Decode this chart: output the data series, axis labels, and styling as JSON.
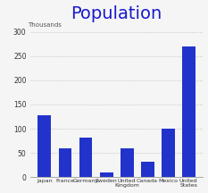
{
  "title": "Population",
  "title_color": "#1a1acc",
  "ylabel": "Thousands",
  "categories": [
    "Japan",
    "France",
    "Germany",
    "Sweden",
    "United\nKingdom",
    "Canada",
    "Mexico",
    "United\nStates"
  ],
  "values": [
    127,
    60,
    82,
    9,
    60,
    31,
    100,
    270
  ],
  "bar_color": "#2233cc",
  "ylim": [
    0,
    320
  ],
  "yticks": [
    0,
    50,
    100,
    150,
    200,
    250,
    300
  ],
  "grid_color": "#aaaaaa",
  "background_color": "#f5f5f5",
  "bar_width": 0.65,
  "title_fontsize": 14,
  "tick_label_fontsize": 4.5,
  "ytick_fontsize": 5.5,
  "ylabel_fontsize": 5
}
